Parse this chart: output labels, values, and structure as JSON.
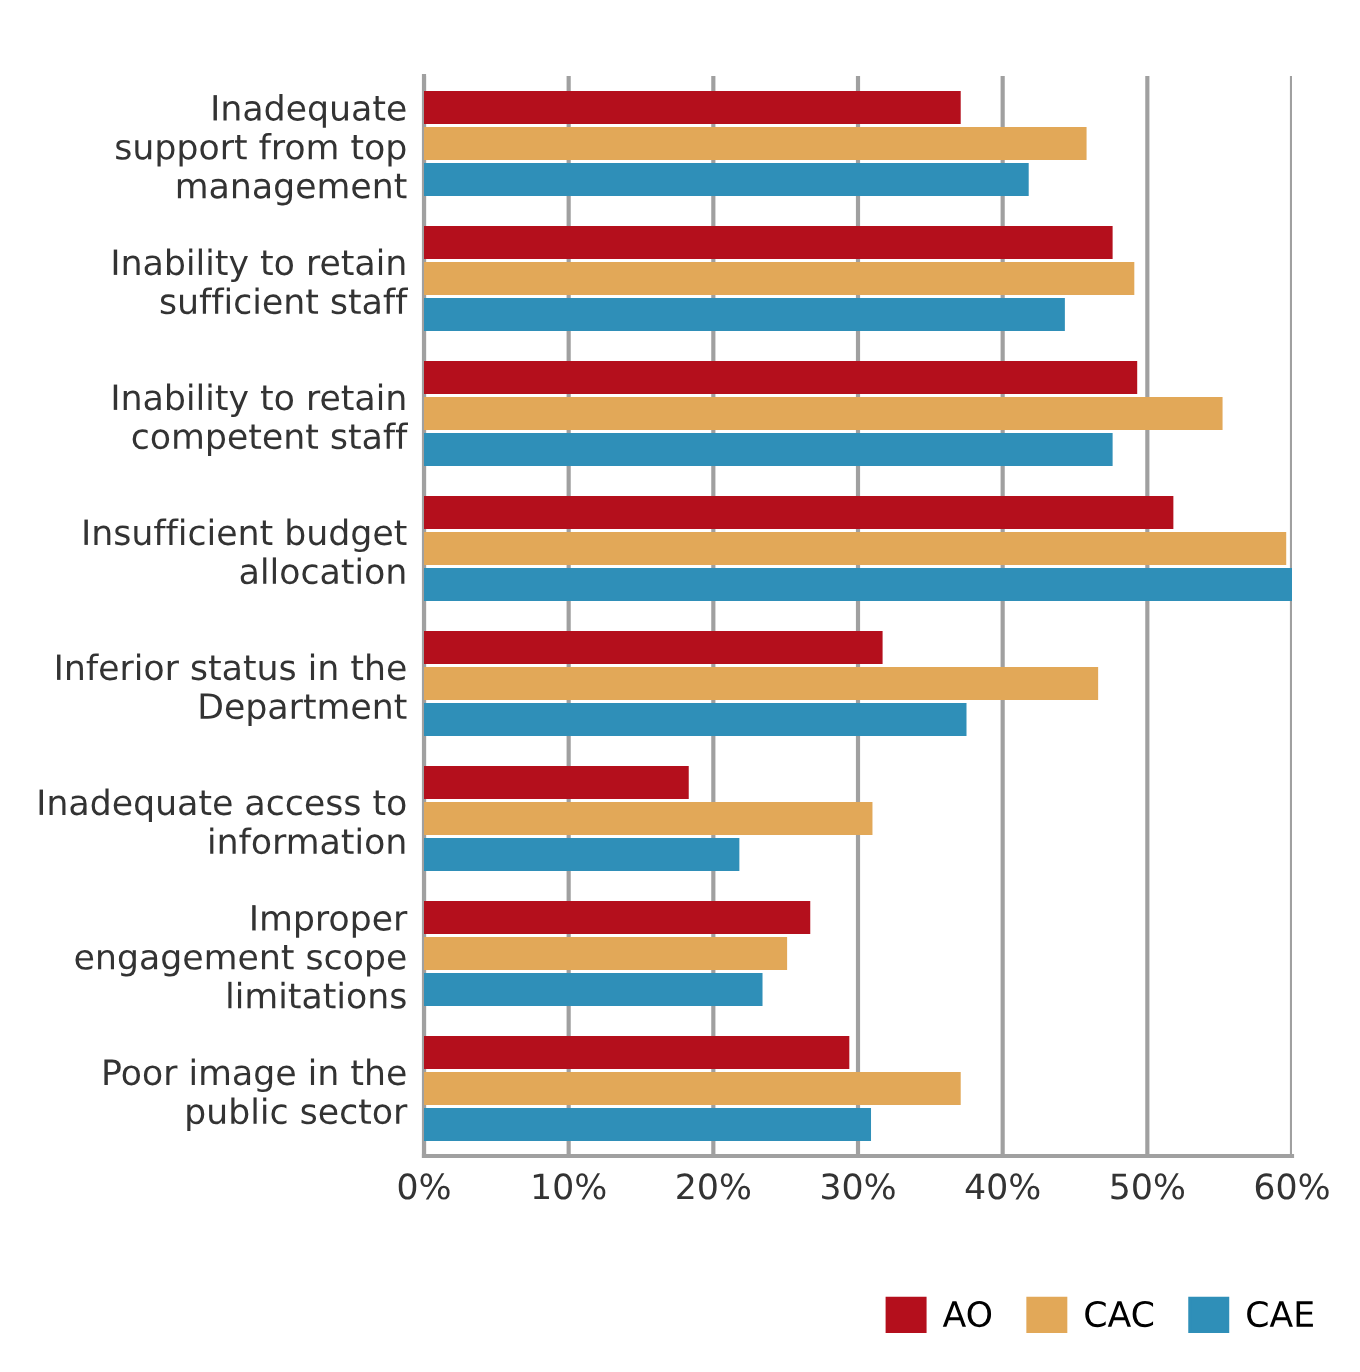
{
  "chart_data": {
    "type": "bar",
    "orientation": "horizontal",
    "categories": [
      "Inadequate\nsupport from top\nmanagement",
      "Inability to retain\nsufficient staff",
      "Inability to retain\ncompetent staff",
      "Insufficient budget\nallocation",
      "Inferior status in the\nDepartment",
      "Inadequate access to\ninformation",
      "Improper\nengagement scope\nlimitations",
      "Poor image in the\npublic sector"
    ],
    "series": [
      {
        "name": "AO",
        "color": "#b40f1c",
        "values": [
          37.1,
          47.6,
          49.3,
          51.8,
          31.7,
          18.3,
          26.7,
          29.4
        ]
      },
      {
        "name": "CAC",
        "color": "#e2a858",
        "values": [
          45.8,
          49.1,
          55.2,
          59.6,
          46.6,
          31.0,
          25.1,
          37.1
        ]
      },
      {
        "name": "CAE",
        "color": "#2f8fb8",
        "values": [
          41.8,
          44.3,
          47.6,
          60.0,
          37.5,
          21.8,
          23.4,
          30.9
        ]
      }
    ],
    "xlim": [
      0,
      60
    ],
    "xticks": [
      {
        "value": 0,
        "label": "0%"
      },
      {
        "value": 10,
        "label": "10%"
      },
      {
        "value": 20,
        "label": "20%"
      },
      {
        "value": 30,
        "label": "30%"
      },
      {
        "value": 40,
        "label": "40%"
      },
      {
        "value": 50,
        "label": "50%"
      },
      {
        "value": 60,
        "label": "60%"
      }
    ],
    "grid": "x",
    "legend": "bottom right"
  }
}
